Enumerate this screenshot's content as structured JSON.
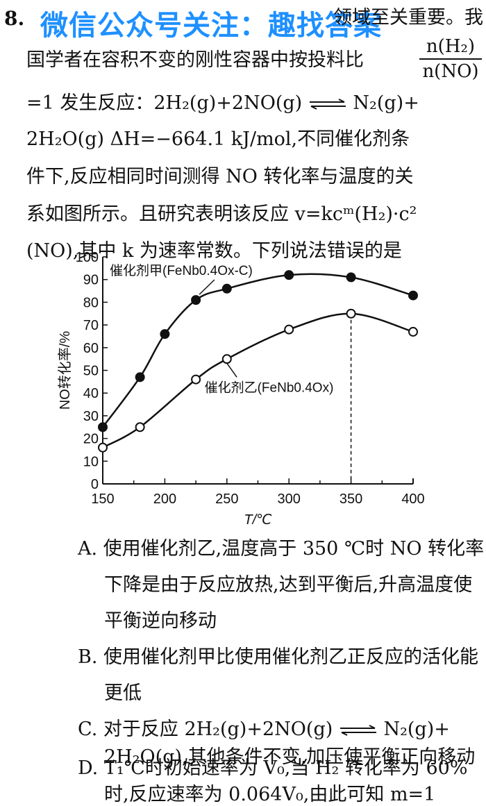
{
  "question": {
    "number": "8.",
    "watermark": "微信公众号关注：趣找答案",
    "line1_tail": "领域至关重要。我",
    "line2": "国学者在容积不变的刚性容器中按投料比",
    "fraction": {
      "numerator": "n(H₂)",
      "denominator": "n(NO)"
    },
    "line3a": "=1 发生反应：2H₂(g)+2NO(g)",
    "line3b": "N₂(g)+",
    "line4": "2H₂O(g)   ΔH=−664.1 kJ/mol,不同催化剂条",
    "line5": "件下,反应相同时间测得 NO 转化率与温度的关",
    "line6": "系如图所示。且研究表明该反应 v=kcᵐ(H₂)·c²",
    "line7": "(NO),其中 k 为速率常数。下列说法错误的是"
  },
  "chart_data": {
    "type": "line",
    "xlabel": "T/℃",
    "ylabel": "NO转化率/%",
    "xlim": [
      150,
      400
    ],
    "ylim": [
      0,
      100
    ],
    "xticks": [
      150,
      200,
      250,
      300,
      350,
      400
    ],
    "yticks": [
      0,
      10,
      20,
      30,
      40,
      50,
      60,
      70,
      80,
      90,
      100
    ],
    "series": [
      {
        "name": "催化剂甲(FeNb0.4Ox-C)",
        "marker": "filled",
        "points": [
          [
            150,
            25
          ],
          [
            180,
            47
          ],
          [
            200,
            66
          ],
          [
            225,
            81
          ],
          [
            250,
            86
          ],
          [
            300,
            92
          ],
          [
            350,
            91
          ],
          [
            400,
            83
          ]
        ]
      },
      {
        "name": "催化剂乙(FeNb0.4Ox)",
        "marker": "open",
        "points": [
          [
            150,
            16
          ],
          [
            180,
            25
          ],
          [
            225,
            46
          ],
          [
            250,
            55
          ],
          [
            300,
            68
          ],
          [
            350,
            75
          ],
          [
            400,
            67
          ]
        ]
      }
    ],
    "vline_x": 350
  },
  "options": {
    "A1": "A. 使用催化剂乙,温度高于 350 ℃时 NO 转化率",
    "A2": "下降是由于反应放热,达到平衡后,升高温度使",
    "A3": "平衡逆向移动",
    "B1": "B. 使用催化剂甲比使用催化剂乙正反应的活化能",
    "B2": "更低",
    "C1a": "C. 对于反应 2H₂(g)+2NO(g)",
    "C1b": "N₂(g)+",
    "C2": "2H₂O(g),其他条件不变,加压使平衡正向移动",
    "D1": "D. T₁℃时初始速率为 V₀,当 H₂ 转化率为 60%",
    "D2": "时,反应速率为 0.064V₀,由此可知 m=1"
  }
}
